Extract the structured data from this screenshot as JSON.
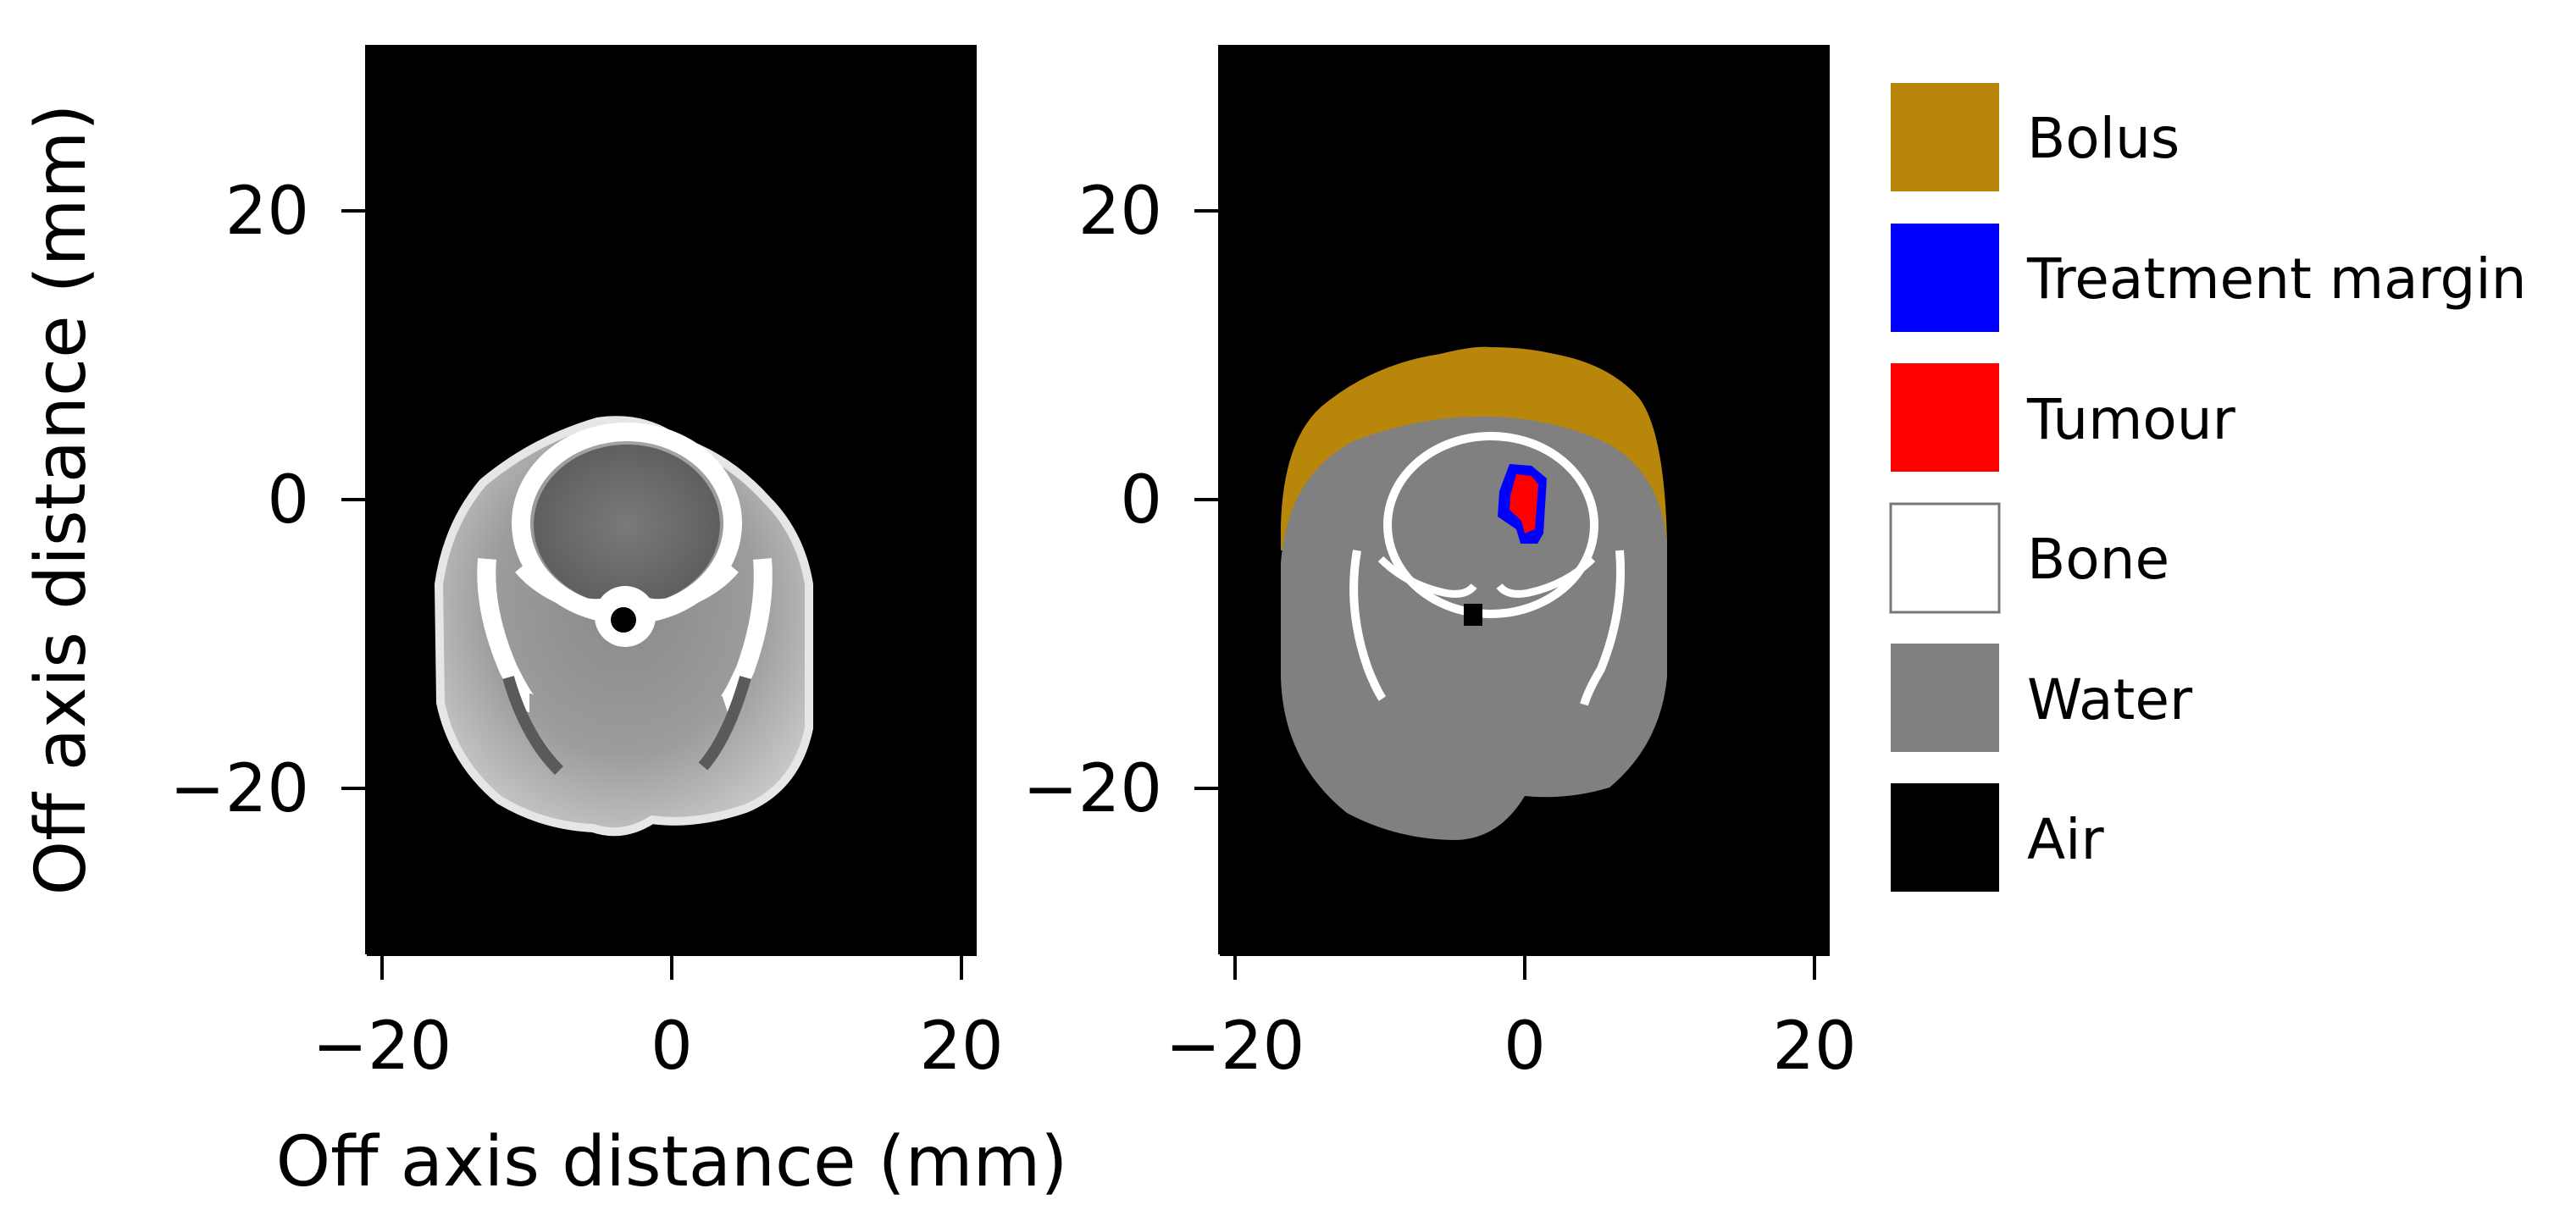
{
  "figure": {
    "xlabel": "Off axis distance (mm)",
    "ylabel": "Off axis distance (mm)",
    "x_ticks": [
      "−20",
      "0",
      "20"
    ],
    "y_ticks": [
      "20",
      "0",
      "−20"
    ],
    "x_range_mm": [
      -21,
      21
    ],
    "y_range_mm": [
      -31.5,
      31.5
    ],
    "background_color": "#000000"
  },
  "panels": [
    {
      "id": "ct-image",
      "content": "grayscale CT slice"
    },
    {
      "id": "material-map",
      "content": "segmented material map"
    }
  ],
  "legend": {
    "items": [
      {
        "label": "Bolus",
        "color": "#B8860B"
      },
      {
        "label": "Treatment margin",
        "color": "#0000FF"
      },
      {
        "label": "Tumour",
        "color": "#FF0000"
      },
      {
        "label": "Bone",
        "color": "#FFFFFF"
      },
      {
        "label": "Water",
        "color": "#808080"
      },
      {
        "label": "Air",
        "color": "#000000"
      }
    ]
  }
}
